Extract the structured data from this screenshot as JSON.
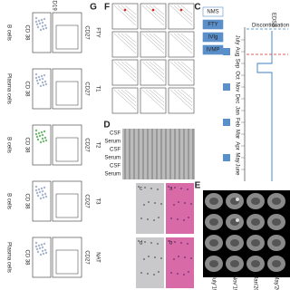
{
  "panel_labels": [
    "G",
    "F",
    "C",
    "D",
    "E"
  ],
  "flow": {
    "marker_top": "CD19",
    "y_axis": "CD 38",
    "x_axis": "CD27",
    "rows": [
      {
        "cell": "B cells",
        "timepoint": "FTY"
      },
      {
        "cell": "Plasma cells",
        "timepoint": "T1"
      },
      {
        "cell": "B cells",
        "timepoint": "T2"
      },
      {
        "cell": "B cells",
        "timepoint": "T3"
      },
      {
        "cell": "Plasma cells",
        "timepoint": "NAT"
      }
    ]
  },
  "blot": {
    "lanes": [
      "CSF",
      "Serum",
      "CSF",
      "Serum",
      "CSF",
      "Serum"
    ]
  },
  "histology": {
    "labels": [
      "c",
      "a",
      "d",
      "b"
    ]
  },
  "timeline": {
    "score": "EDSS",
    "tracks": [
      "NMS",
      "FTY",
      "IVIg",
      "IVMP"
    ],
    "note": "Discontinuation",
    "months": [
      "July",
      "Aug",
      "Sep",
      "Oct",
      "Nov",
      "Dec",
      "Jan",
      "Feb",
      "Mar",
      "Apr",
      "May",
      "June"
    ]
  },
  "mri": {
    "dates": [
      "July'19",
      "Nov'19",
      "Jan'20",
      "May'20"
    ]
  }
}
